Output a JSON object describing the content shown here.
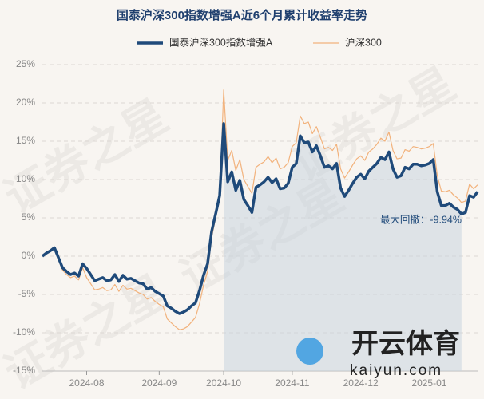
{
  "chart_data": {
    "type": "line",
    "title": "国泰沪深300指数增强A近6个月累计收益率走势",
    "annotation": "最大回撤：-9.94%",
    "watermark": "证券之星",
    "logo": {
      "name": "开云体育",
      "site": "kaiyun.com"
    },
    "grid": true,
    "legend": "top",
    "ylim": [
      -15,
      25
    ],
    "yticks": [
      {
        "value": -15,
        "label": "-15%"
      },
      {
        "value": -10,
        "label": "-10%"
      },
      {
        "value": -5,
        "label": "-5%"
      },
      {
        "value": 0,
        "label": "0%"
      },
      {
        "value": 5,
        "label": "5%"
      },
      {
        "value": 10,
        "label": "10%"
      },
      {
        "value": 15,
        "label": "15%"
      },
      {
        "value": 20,
        "label": "20%"
      },
      {
        "value": 25,
        "label": "25%"
      }
    ],
    "categories": [
      null,
      null,
      null,
      null,
      null,
      null,
      null,
      null,
      null,
      null,
      null,
      "2024-08",
      null,
      null,
      null,
      null,
      null,
      null,
      null,
      null,
      null,
      null,
      null,
      null,
      null,
      null,
      null,
      null,
      null,
      "2024-09",
      null,
      null,
      null,
      null,
      null,
      null,
      null,
      null,
      null,
      null,
      null,
      null,
      null,
      null,
      null,
      "2024-10",
      null,
      null,
      null,
      null,
      null,
      null,
      null,
      null,
      null,
      null,
      null,
      null,
      null,
      null,
      null,
      null,
      "2024-11",
      null,
      null,
      null,
      null,
      null,
      null,
      null,
      null,
      null,
      null,
      null,
      null,
      null,
      null,
      null,
      null,
      "2024-12",
      null,
      null,
      null,
      null,
      null,
      null,
      null,
      null,
      null,
      null,
      null,
      null,
      null,
      null,
      null,
      null,
      "2025-01",
      null,
      null,
      null,
      null,
      null,
      null,
      null,
      null,
      null,
      null,
      null,
      null
    ],
    "series": [
      {
        "name": "国泰沪深300指数增强A",
        "color": "#1f4a7a",
        "width": 3.5,
        "values": [
          0,
          0.4,
          0.7,
          1.1,
          -0.2,
          -1.5,
          -2,
          -2.4,
          -2.2,
          -2.6,
          -1,
          -1.6,
          -2.4,
          -3.2,
          -3,
          -2.8,
          -3.2,
          -3.1,
          -2.4,
          -3.3,
          -2.5,
          -3,
          -2.9,
          -3.2,
          -3.5,
          -3.6,
          -4.3,
          -4.1,
          -4.6,
          -4.9,
          -5.2,
          -6.5,
          -6.8,
          -7.2,
          -7.5,
          -7.3,
          -7,
          -6.5,
          -6.1,
          -4.5,
          -2.5,
          -1,
          3.2,
          5.5,
          7.9,
          17.3,
          9.7,
          11,
          8.6,
          9.9,
          7.4,
          6.6,
          5.7,
          9,
          9.3,
          9.7,
          10.3,
          9.6,
          10.1,
          8.8,
          8.9,
          9.5,
          11.6,
          12.1,
          15.7,
          14.8,
          14.9,
          13.6,
          14.4,
          13.1,
          11.6,
          11.8,
          11.4,
          12.1,
          8.9,
          7.8,
          8.6,
          9.5,
          10.3,
          10.7,
          10.1,
          11.1,
          11.6,
          12.1,
          12.9,
          12.6,
          13.6,
          11.4,
          10.3,
          10.5,
          11.6,
          11.4,
          12,
          12,
          11.8,
          11.9,
          12.1,
          12.6,
          8.4,
          6.6,
          6.6,
          6.9,
          6.4,
          6.1,
          5.5,
          5.7,
          7.9,
          7.7,
          8.4
        ]
      },
      {
        "name": "沪深300",
        "color": "#f2b27c",
        "width": 1.2,
        "values": [
          0,
          0.3,
          0.6,
          1,
          -0.5,
          -1.8,
          -2.4,
          -2.8,
          -2.6,
          -3.1,
          -1.5,
          -2.8,
          -3.6,
          -4.4,
          -4.3,
          -4.1,
          -4.5,
          -4.4,
          -3.7,
          -4.6,
          -3.8,
          -4.3,
          -4.2,
          -4.5,
          -4.8,
          -5,
          -5.6,
          -5.4,
          -5.9,
          -6.3,
          -6.6,
          -8.2,
          -8.7,
          -9.2,
          -9.6,
          -9.5,
          -9.2,
          -8.6,
          -8,
          -6.2,
          -3.8,
          -2,
          2.4,
          5,
          7.5,
          21.7,
          12.5,
          13.8,
          11.2,
          12.6,
          10,
          9.1,
          8.2,
          11.6,
          12,
          12.3,
          13,
          12.2,
          12.8,
          11.4,
          11.6,
          12.2,
          14.3,
          14.8,
          18.3,
          17.3,
          17.5,
          16,
          16.9,
          15.5,
          14,
          14.2,
          13.8,
          14.6,
          11.4,
          10.2,
          11,
          11.9,
          12.7,
          13.1,
          12.5,
          13.6,
          14,
          14.6,
          15.4,
          15,
          16.2,
          13.8,
          12.7,
          12.8,
          13.9,
          13.7,
          14.3,
          14.2,
          14,
          14.1,
          14.3,
          14.7,
          10.5,
          8.5,
          8.4,
          8.6,
          8,
          7.6,
          7,
          7.2,
          9.4,
          8.8,
          9.3
        ]
      }
    ]
  }
}
